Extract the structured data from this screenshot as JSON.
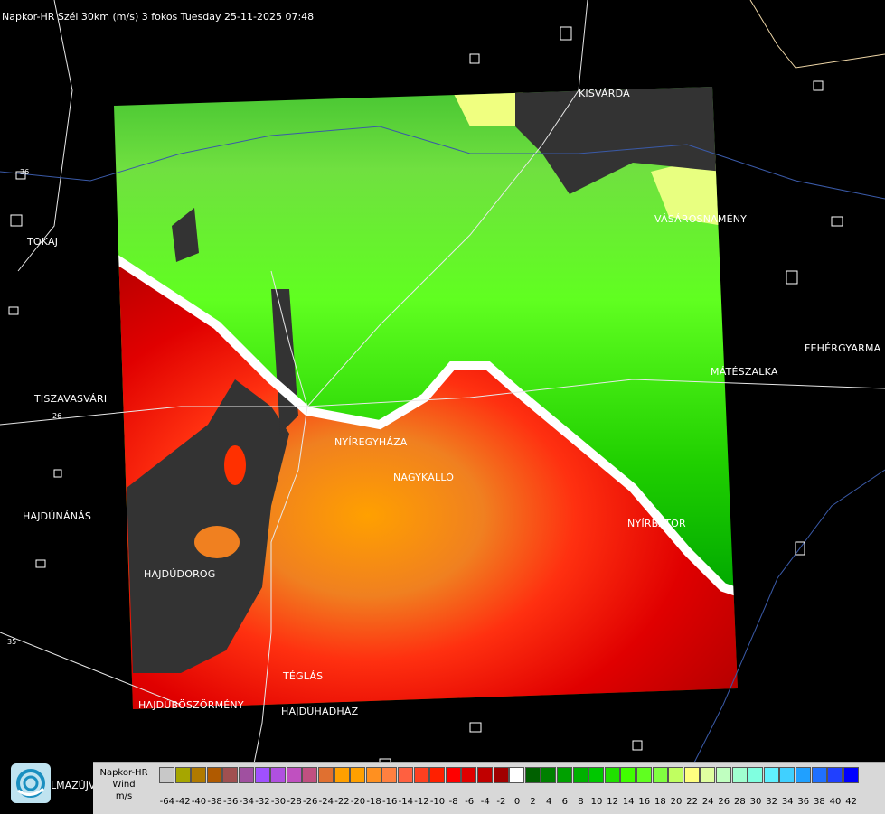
{
  "title": "Napkor-HR Szél 30km (m/s) 3 fokos Tuesday 25-11-2025 07:48",
  "cities": [
    {
      "id": "kisvarda",
      "name": "KISVÁRDA"
    },
    {
      "id": "tokaj",
      "name": "TOKAJ"
    },
    {
      "id": "vasarosnameny",
      "name": "VÁSÁROSNAMÉNY"
    },
    {
      "id": "tiszavasvari",
      "name": "TISZAVASVÁRI"
    },
    {
      "id": "feherygyarmat",
      "name": "FEHÉRGYARMA"
    },
    {
      "id": "mateszalka",
      "name": "MÁTÉSZALKA"
    },
    {
      "id": "nyiregyhaza",
      "name": "NYÍREGYHÁZA"
    },
    {
      "id": "nagykallo",
      "name": "NAGYKÁLLÓ"
    },
    {
      "id": "hajdunanas",
      "name": "HAJDÚNÁNÁS"
    },
    {
      "id": "nyirbator",
      "name": "NYÍRBÁTOR"
    },
    {
      "id": "hajdudorog",
      "name": "HAJDÚDOROG"
    },
    {
      "id": "teglas",
      "name": "TÉGLÁS"
    },
    {
      "id": "hajduboszormeny",
      "name": "HAJDÚBÖSZÖRMÉNY"
    },
    {
      "id": "hajduhadhaz",
      "name": "HAJDÚHADHÁZ"
    },
    {
      "id": "balmazujvaros",
      "name": "LMAZÚJVÁR"
    }
  ],
  "road_numbers": [
    "36",
    "26",
    "35"
  ],
  "legend": {
    "source": "Napkor-HR",
    "quantity": "Wind",
    "unit": "m/s",
    "ticks": [
      "-64",
      "-42",
      "-40",
      "-38",
      "-36",
      "-34",
      "-32",
      "-30",
      "-28",
      "-26",
      "-24",
      "-22",
      "-20",
      "-18",
      "-16",
      "-14",
      "-12",
      "-10",
      "-8",
      "-6",
      "-4",
      "-2",
      "0",
      "2",
      "4",
      "6",
      "8",
      "10",
      "12",
      "14",
      "16",
      "18",
      "20",
      "22",
      "24",
      "26",
      "28",
      "30",
      "32",
      "34",
      "36",
      "38",
      "40",
      "42"
    ],
    "colors": [
      "#c8c8c8",
      "#a6a600",
      "#b07a00",
      "#b05a00",
      "#a05050",
      "#a050a0",
      "#a050ff",
      "#b050e0",
      "#c050c0",
      "#c05080",
      "#e07030",
      "#ffa000",
      "#ffa000",
      "#ff9020",
      "#ff8040",
      "#ff6040",
      "#ff4020",
      "#ff2000",
      "#ff0000",
      "#e00000",
      "#c00000",
      "#a00000",
      "#ffffff",
      "#006000",
      "#008000",
      "#00a000",
      "#00b000",
      "#00c800",
      "#20e000",
      "#40ff00",
      "#60ff20",
      "#80ff40",
      "#c0ff60",
      "#ffff80",
      "#e0ffa0",
      "#c0ffc0",
      "#a0ffd0",
      "#80ffe0",
      "#60f0ff",
      "#40d0ff",
      "#20a0ff",
      "#2070ff",
      "#2040ff",
      "#0000ff"
    ]
  }
}
